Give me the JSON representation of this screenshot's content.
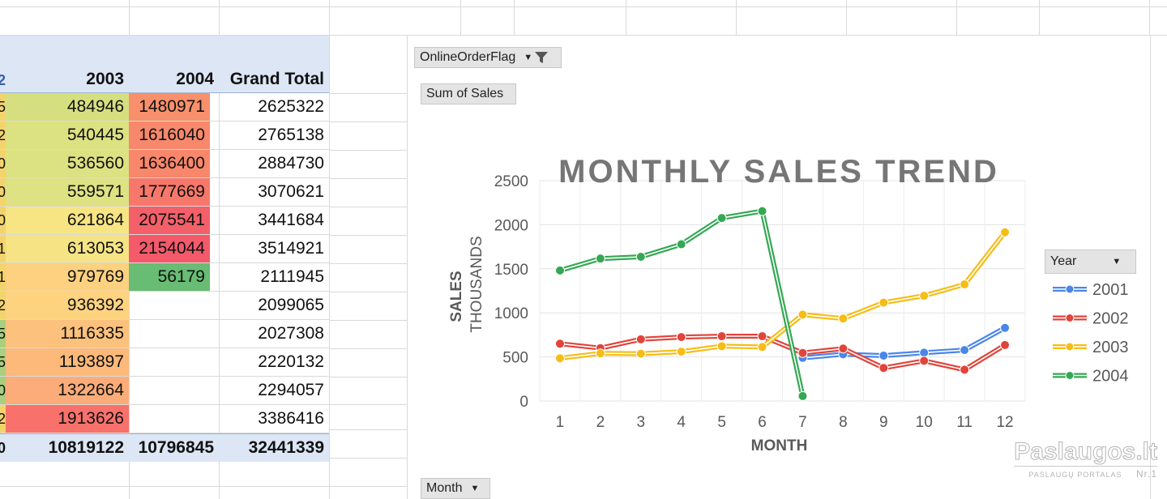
{
  "pivot": {
    "header": [
      "2",
      "2003",
      "2004",
      "Grand Total"
    ],
    "rows": [
      {
        "edge": "5",
        "y2003": "484946",
        "y2004": "1480971",
        "total": "2625322",
        "c_edge": "#f3d46c",
        "c2003": "#d6df80",
        "c2004": "#f8906c"
      },
      {
        "edge": "2",
        "y2003": "540445",
        "y2004": "1616040",
        "total": "2765138",
        "c_edge": "#f3d46c",
        "c2003": "#dce182",
        "c2004": "#f8886c"
      },
      {
        "edge": "0",
        "y2003": "536560",
        "y2004": "1636400",
        "total": "2884730",
        "c_edge": "#f3d46c",
        "c2003": "#dce182",
        "c2004": "#f8876b"
      },
      {
        "edge": "0",
        "y2003": "559571",
        "y2004": "1777669",
        "total": "3070621",
        "c_edge": "#f3d46c",
        "c2003": "#dee283",
        "c2004": "#f7786a"
      },
      {
        "edge": "0",
        "y2003": "621864",
        "y2004": "2075541",
        "total": "3441684",
        "c_edge": "#f3d46c",
        "c2003": "#f7e483",
        "c2004": "#f4606a"
      },
      {
        "edge": "1",
        "y2003": "613053",
        "y2004": "2154044",
        "total": "3514921",
        "c_edge": "#f3d46c",
        "c2003": "#f6e484",
        "c2004": "#f45a6a"
      },
      {
        "edge": "1",
        "y2003": "979769",
        "y2004": "56179",
        "total": "2111945",
        "c_edge": "#f3d46c",
        "c2003": "#fdd17f",
        "c2004": "#68bc74"
      },
      {
        "edge": "2",
        "y2003": "936392",
        "y2004": "",
        "total": "2099065",
        "c_edge": "#f3d46c",
        "c2003": "#fdd380",
        "c2004": ""
      },
      {
        "edge": "5",
        "y2003": "1116335",
        "y2004": "",
        "total": "2027308",
        "c_edge": "#a9cf7c",
        "c2003": "#fcc17c",
        "c2004": ""
      },
      {
        "edge": "5",
        "y2003": "1193897",
        "y2004": "",
        "total": "2220132",
        "c_edge": "#a9cf7c",
        "c2003": "#fcb97a",
        "c2004": ""
      },
      {
        "edge": "0",
        "y2003": "1322664",
        "y2004": "",
        "total": "2294057",
        "c_edge": "#a9cf7c",
        "c2003": "#fbac78",
        "c2004": ""
      },
      {
        "edge": "2",
        "y2003": "1913626",
        "y2004": "",
        "total": "3386416",
        "c_edge": "#f3d46c",
        "c2003": "#f8716b",
        "c2004": ""
      }
    ],
    "grand_total": {
      "edge": "0",
      "y2003": "10819122",
      "y2004": "10796845",
      "total": "32441339"
    }
  },
  "chart_buttons": {
    "filter_field": "OnlineOrderFlag",
    "value_field": "Sum of Sales",
    "legend_field": "Year",
    "axis_field": "Month"
  },
  "chart_data": {
    "type": "line",
    "title": "MONTHLY SALES TREND",
    "xlabel": "MONTH",
    "ylabel": "SALES",
    "yunit": "THOUSANDS",
    "x": [
      1,
      2,
      3,
      4,
      5,
      6,
      7,
      8,
      9,
      10,
      11,
      12
    ],
    "yticks": [
      "0",
      "500",
      "1000",
      "1500",
      "2000",
      "2500"
    ],
    "ylim": [
      0,
      2500
    ],
    "grid": true,
    "legend_position": "right",
    "series": [
      {
        "name": "2001",
        "color": "#4a86e8",
        "values": [
          null,
          null,
          null,
          null,
          null,
          null,
          489,
          530,
          515,
          548,
          578,
          829
        ]
      },
      {
        "name": "2002",
        "color": "#e0443b",
        "values": [
          650,
          600,
          700,
          725,
          735,
          735,
          545,
          595,
          375,
          456,
          355,
          635
        ]
      },
      {
        "name": "2003",
        "color": "#f6bd16",
        "values": [
          485,
          540,
          537,
          560,
          622,
          613,
          980,
          936,
          1116,
          1194,
          1323,
          1914
        ]
      },
      {
        "name": "2004",
        "color": "#34a853",
        "values": [
          1481,
          1616,
          1636,
          1778,
          2076,
          2154,
          56,
          null,
          null,
          null,
          null,
          null
        ]
      }
    ]
  },
  "watermark": {
    "main": "Paslaugos.lt",
    "sub": "PASLAUGŲ PORTALAS",
    "badge": "Nr.1"
  }
}
